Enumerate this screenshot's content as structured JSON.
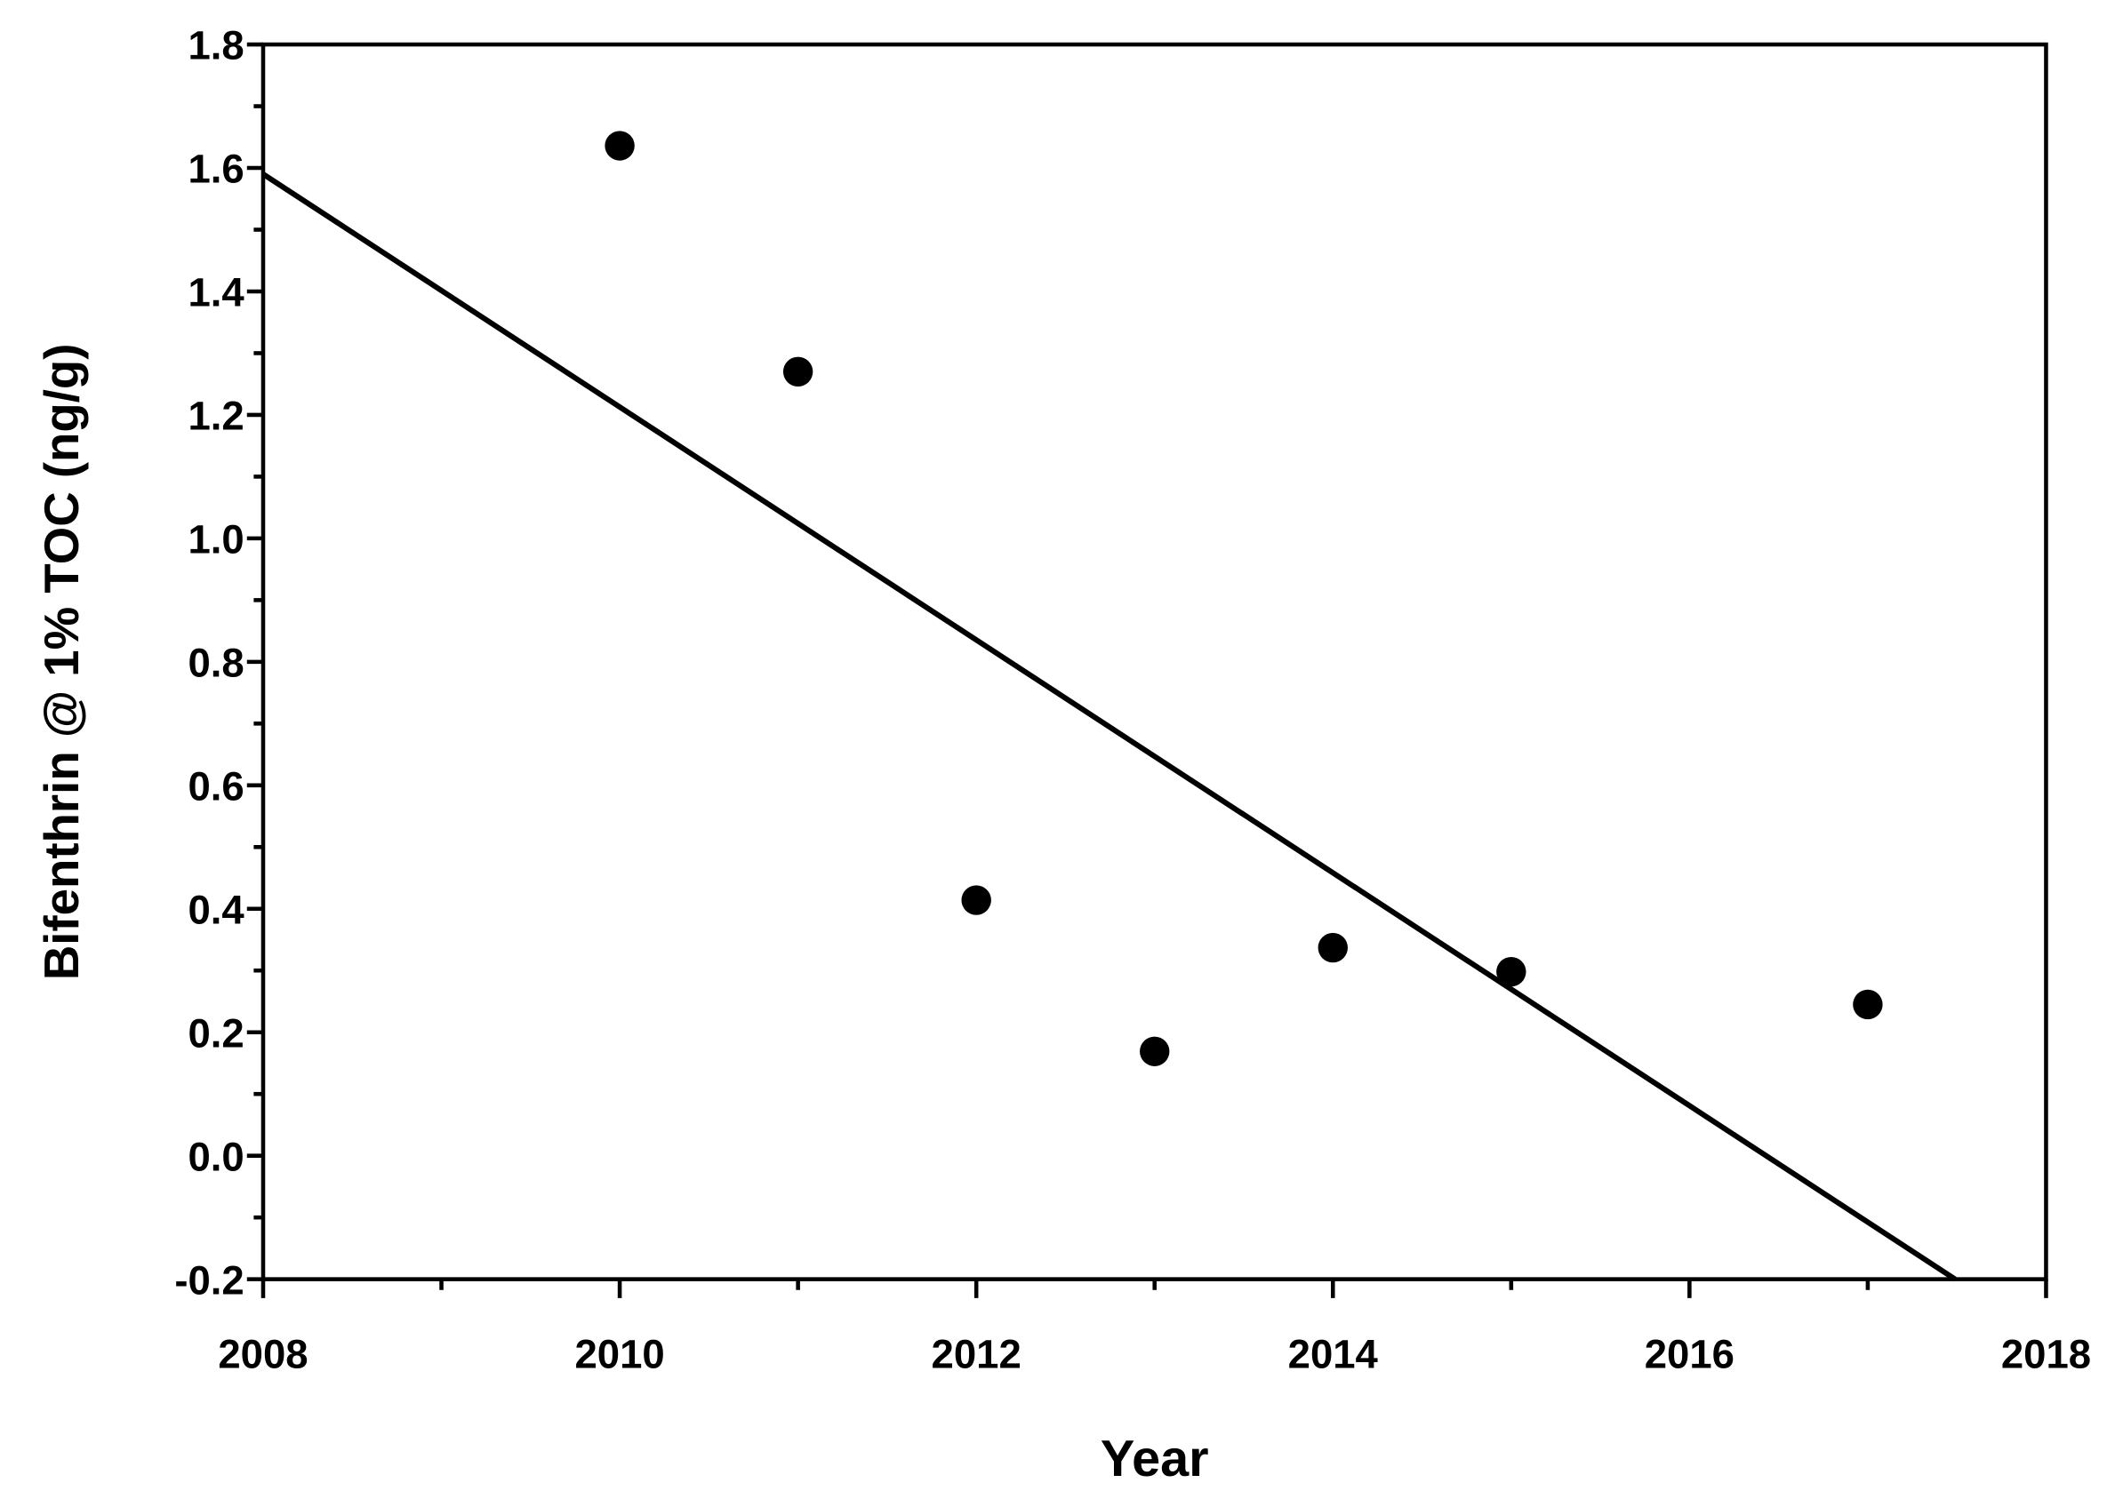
{
  "chart_data": {
    "type": "scatter",
    "x_label": "Year",
    "y_label": "Bifenthrin @ 1% TOC (ng/g)",
    "xlim": [
      2008,
      2018
    ],
    "xticks": [
      2008,
      2010,
      2012,
      2014,
      2016,
      2018
    ],
    "ylim": [
      -0.2,
      1.8
    ],
    "yticks": [
      {
        "value": -0.2,
        "label": "-0.2"
      },
      {
        "value": 0,
        "label": "0.0"
      },
      {
        "value": 0.2,
        "label": "0.2"
      },
      {
        "value": 0.4,
        "label": "0.4"
      },
      {
        "value": 0.6,
        "label": "0.6"
      },
      {
        "value": 0.8,
        "label": "0.8"
      },
      {
        "value": 1,
        "label": "1.0"
      },
      {
        "value": 1.2,
        "label": "1.2"
      },
      {
        "value": 1.4,
        "label": "1.4"
      },
      {
        "value": 1.6,
        "label": "1.6"
      },
      {
        "value": 1.8,
        "label": "1.8"
      }
    ],
    "series": [
      {
        "type": "scatter",
        "color": "#000000",
        "x": [
          2010,
          2011,
          2012,
          2013,
          2014,
          2015,
          2017
        ],
        "values": [
          1.636,
          1.27,
          0.414,
          0.169,
          0.337,
          0.298,
          0.245
        ]
      },
      {
        "type": "line",
        "color": "#000000",
        "x": [
          2008,
          2017.49
        ],
        "values": [
          1.59,
          -0.2
        ]
      }
    ]
  }
}
